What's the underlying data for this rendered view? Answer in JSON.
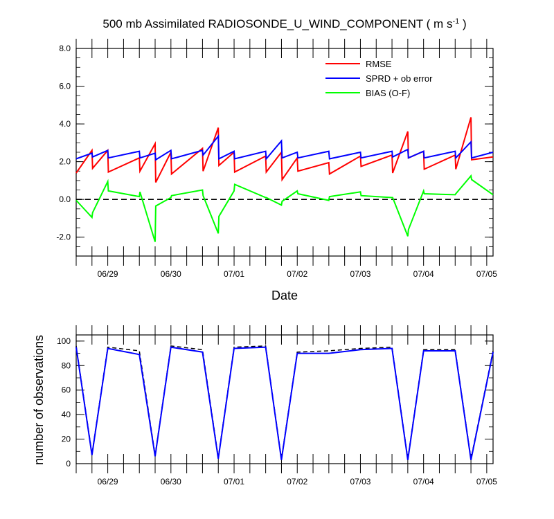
{
  "colors": {
    "rmse": "#ff0000",
    "sprd": "#0000ff",
    "bias": "#00ff00",
    "count_dashed": "#000000",
    "count_used": "#0000ff"
  },
  "chart_data": [
    {
      "type": "line",
      "title": "500 mb Assimilated RADIOSONDE_U_WIND_COMPONENT ( m s",
      "title_superscript": "-1",
      "title_suffix": " )",
      "xlabel": "Date",
      "ylabel": "",
      "xlim": [
        0,
        6.6
      ],
      "ylim": [
        -3.0,
        8.0
      ],
      "yticks": [
        -2.0,
        0.0,
        2.0,
        4.0,
        6.0,
        8.0
      ],
      "ytick_labels": [
        "-2.0",
        "0.0",
        "2.0",
        "4.0",
        "6.0",
        "8.0"
      ],
      "xticks": [
        0.5,
        1.5,
        2.5,
        3.5,
        4.5,
        5.5,
        6.5
      ],
      "xtick_labels": [
        "06/29",
        "06/30",
        "07/01",
        "07/02",
        "07/03",
        "07/04",
        "07/05"
      ],
      "zero_line": "dashed",
      "legend_position": "top-right",
      "series": [
        {
          "name": "RMSE",
          "x": [
            0,
            0.25,
            0.26,
            0.5,
            0.51,
            1.0,
            1.01,
            1.25,
            1.26,
            1.5,
            1.51,
            2.0,
            2.01,
            2.25,
            2.26,
            2.5,
            2.51,
            3.0,
            3.01,
            3.25,
            3.26,
            3.5,
            3.51,
            4.0,
            4.01,
            4.5,
            4.51,
            5.0,
            5.01,
            5.25,
            5.26,
            5.5,
            5.51,
            6.0,
            6.01,
            6.25,
            6.26,
            6.6
          ],
          "values": [
            1.4,
            2.6,
            1.65,
            2.6,
            1.45,
            2.2,
            1.5,
            2.95,
            0.9,
            2.5,
            1.35,
            2.7,
            1.5,
            3.8,
            1.8,
            2.5,
            1.45,
            2.3,
            1.45,
            2.5,
            1.05,
            2.2,
            1.5,
            1.95,
            1.35,
            2.3,
            1.75,
            2.35,
            1.4,
            3.6,
            2.2,
            2.55,
            1.6,
            2.35,
            1.6,
            4.35,
            2.1,
            2.25
          ]
        },
        {
          "name": "SPRD + ob error",
          "x": [
            0,
            0.25,
            0.26,
            0.5,
            0.51,
            1.0,
            1.01,
            1.25,
            1.26,
            1.5,
            1.51,
            2.0,
            2.01,
            2.25,
            2.26,
            2.5,
            2.51,
            3.0,
            3.01,
            3.25,
            3.26,
            3.5,
            3.51,
            4.0,
            4.01,
            4.5,
            4.51,
            5.0,
            5.01,
            5.25,
            5.26,
            5.5,
            5.51,
            6.0,
            6.01,
            6.25,
            6.26,
            6.6
          ],
          "values": [
            2.15,
            2.45,
            2.25,
            2.6,
            2.2,
            2.55,
            2.2,
            2.45,
            2.1,
            2.6,
            2.15,
            2.6,
            2.35,
            3.35,
            2.15,
            2.55,
            2.15,
            2.55,
            2.15,
            3.1,
            2.2,
            2.5,
            2.2,
            2.55,
            2.15,
            2.5,
            2.2,
            2.55,
            2.25,
            2.65,
            2.2,
            2.55,
            2.2,
            2.55,
            2.2,
            3.05,
            2.2,
            2.5
          ]
        },
        {
          "name": "BIAS (O-F)",
          "x": [
            0,
            0.25,
            0.26,
            0.5,
            0.51,
            1.0,
            1.01,
            1.25,
            1.26,
            1.5,
            1.51,
            2.0,
            2.01,
            2.25,
            2.26,
            2.5,
            2.51,
            3.0,
            3.01,
            3.25,
            3.26,
            3.5,
            3.51,
            4.0,
            4.01,
            4.5,
            4.51,
            5.0,
            5.01,
            5.25,
            5.26,
            5.5,
            5.51,
            6.0,
            6.01,
            6.25,
            6.26,
            6.6
          ],
          "values": [
            -0.05,
            -0.95,
            -0.7,
            0.95,
            0.45,
            0.15,
            0.4,
            -2.25,
            -0.35,
            0.1,
            0.2,
            0.5,
            0.2,
            -1.8,
            -0.9,
            0.45,
            0.8,
            0.1,
            0.1,
            -0.3,
            -0.1,
            0.45,
            0.3,
            -0.05,
            0.15,
            0.4,
            0.2,
            0.1,
            0.1,
            -1.95,
            -1.6,
            0.45,
            0.3,
            0.25,
            0.3,
            1.25,
            1.05,
            0.25
          ]
        }
      ]
    },
    {
      "type": "line",
      "title": "",
      "xlabel": "",
      "ylabel": "number of observations",
      "xlim": [
        0,
        6.6
      ],
      "ylim": [
        0,
        105
      ],
      "yticks": [
        0,
        20,
        40,
        60,
        80,
        100
      ],
      "ytick_labels": [
        "0",
        "20",
        "40",
        "60",
        "80",
        "100"
      ],
      "xticks": [
        0.5,
        1.5,
        2.5,
        3.5,
        4.5,
        5.5,
        6.5
      ],
      "xtick_labels": [
        "06/29",
        "06/30",
        "07/01",
        "07/02",
        "07/03",
        "07/04",
        "07/05"
      ],
      "series": [
        {
          "style": "dashed",
          "x": [
            0,
            0.25,
            0.5,
            1.0,
            1.25,
            1.5,
            2.0,
            2.25,
            2.5,
            3.0,
            3.25,
            3.5,
            4.0,
            4.5,
            5.0,
            5.25,
            5.5,
            6.0,
            6.25,
            6.6
          ],
          "values": [
            96,
            8,
            95,
            92,
            7,
            96,
            93,
            5,
            95,
            96,
            4,
            91,
            92,
            94,
            95,
            4,
            93,
            93,
            4,
            92
          ]
        },
        {
          "style": "solid",
          "x": [
            0,
            0.25,
            0.5,
            1.0,
            1.25,
            1.5,
            2.0,
            2.25,
            2.5,
            3.0,
            3.25,
            3.5,
            4.0,
            4.5,
            5.0,
            5.25,
            5.5,
            6.0,
            6.25,
            6.6
          ],
          "values": [
            95,
            7,
            94,
            89,
            6,
            95,
            91,
            4,
            94,
            95,
            3,
            90,
            90,
            93,
            94,
            3,
            92,
            92,
            3,
            91
          ]
        }
      ]
    }
  ]
}
